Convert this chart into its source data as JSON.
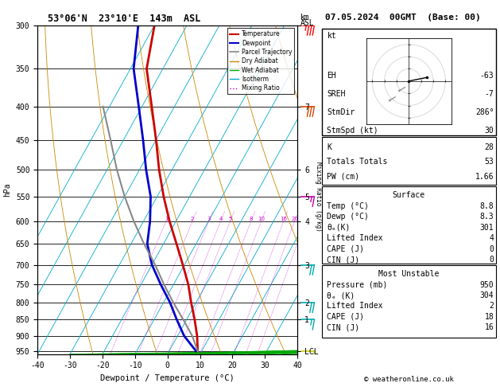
{
  "title_left": "53°06'N  23°10'E  143m  ASL",
  "title_right": "07.05.2024  00GMT  (Base: 00)",
  "xlabel": "Dewpoint / Temperature (°C)",
  "ylabel_left": "hPa",
  "background_color": "#ffffff",
  "pressure_levels": [
    300,
    350,
    400,
    450,
    500,
    550,
    600,
    650,
    700,
    750,
    800,
    850,
    900,
    950
  ],
  "pres_min": 300,
  "pres_max": 960,
  "temp_min": -40,
  "temp_max": 40,
  "skew_factor": 0.7,
  "temp_profile_p": [
    950,
    900,
    850,
    800,
    750,
    700,
    650,
    600,
    550,
    500,
    450,
    400,
    350,
    300
  ],
  "temp_profile_t": [
    8.8,
    6.0,
    2.5,
    -1.5,
    -5.5,
    -10.5,
    -16.0,
    -22.0,
    -28.0,
    -34.0,
    -40.0,
    -47.0,
    -55.0,
    -60.0
  ],
  "dewp_profile_p": [
    950,
    900,
    850,
    800,
    750,
    700,
    650,
    600,
    550,
    500,
    450,
    400,
    350,
    300
  ],
  "dewp_profile_t": [
    8.3,
    2.0,
    -3.0,
    -8.0,
    -14.0,
    -20.0,
    -25.0,
    -28.0,
    -32.0,
    -38.0,
    -44.0,
    -51.0,
    -59.0,
    -65.0
  ],
  "parcel_profile_p": [
    950,
    900,
    850,
    800,
    750,
    700,
    650,
    600,
    550,
    500,
    450,
    400
  ],
  "parcel_profile_t": [
    8.8,
    4.5,
    -1.0,
    -7.0,
    -13.0,
    -19.0,
    -26.0,
    -33.0,
    -40.0,
    -47.0,
    -54.0,
    -62.0
  ],
  "temp_color": "#cc0000",
  "dewp_color": "#0000cc",
  "parcel_color": "#888888",
  "dry_adiabat_color": "#cc8800",
  "wet_adiabat_color": "#00aa00",
  "isotherm_color": "#00aacc",
  "mix_ratio_color": "#cc00cc",
  "mixing_ratio_lines": [
    1,
    2,
    3,
    4,
    5,
    8,
    10,
    16,
    20,
    25
  ],
  "km_ticks_p": [
    300,
    400,
    500,
    550,
    600,
    700,
    800,
    850,
    950
  ],
  "km_ticks_lbl": [
    "",
    "7",
    "6",
    "5",
    "4",
    "3",
    "2",
    "1",
    "LCL"
  ],
  "info_K": "28",
  "info_TT": "53",
  "info_PW": "1.66",
  "surf_temp": "8.8",
  "surf_dewp": "8.3",
  "surf_theta": "301",
  "surf_li": "4",
  "surf_cape": "0",
  "surf_cin": "0",
  "mu_pres": "950",
  "mu_theta": "304",
  "mu_li": "2",
  "mu_cape": "18",
  "mu_cin": "16",
  "hodo_EH": "-63",
  "hodo_SREH": "-7",
  "hodo_StmDir": "286°",
  "hodo_StmSpd": "30",
  "copyright": "© weatheronline.co.uk"
}
